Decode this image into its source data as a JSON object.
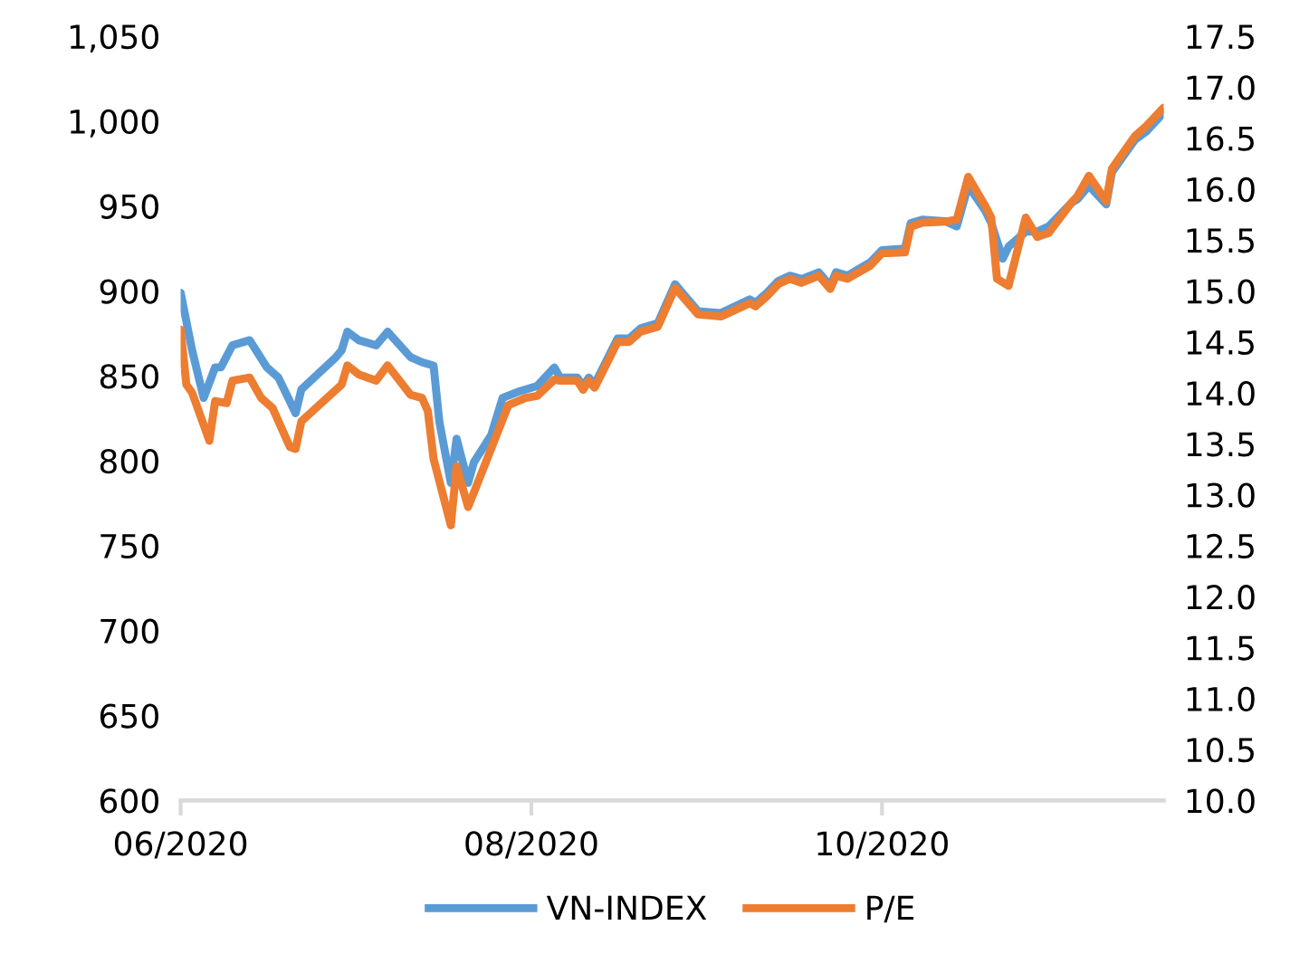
{
  "chart_data": {
    "type": "line",
    "xlim": [
      "2020-06-01",
      "2020-11-19"
    ],
    "xticks": [
      {
        "value": "2020-06-01",
        "label": "06/2020"
      },
      {
        "value": "2020-08-01",
        "label": "08/2020"
      },
      {
        "value": "2020-10-01",
        "label": "10/2020"
      }
    ],
    "ylim": [
      600,
      1050
    ],
    "yticks": [
      {
        "value": 600,
        "label": "600"
      },
      {
        "value": 650,
        "label": "650"
      },
      {
        "value": 700,
        "label": "700"
      },
      {
        "value": 750,
        "label": "750"
      },
      {
        "value": 800,
        "label": "800"
      },
      {
        "value": 850,
        "label": "850"
      },
      {
        "value": 900,
        "label": "900"
      },
      {
        "value": 950,
        "label": "950"
      },
      {
        "value": 1000,
        "label": "1,000"
      },
      {
        "value": 1050,
        "label": "1,050"
      }
    ],
    "y2lim": [
      10.0,
      17.5
    ],
    "y2ticks": [
      {
        "value": 10.0,
        "label": "10.0"
      },
      {
        "value": 10.5,
        "label": "10.5"
      },
      {
        "value": 11.0,
        "label": "11.0"
      },
      {
        "value": 11.5,
        "label": "11.5"
      },
      {
        "value": 12.0,
        "label": "12.0"
      },
      {
        "value": 12.5,
        "label": "12.5"
      },
      {
        "value": 13.0,
        "label": "13.0"
      },
      {
        "value": 13.5,
        "label": "13.5"
      },
      {
        "value": 14.0,
        "label": "14.0"
      },
      {
        "value": 14.5,
        "label": "14.5"
      },
      {
        "value": 15.0,
        "label": "15.0"
      },
      {
        "value": 15.5,
        "label": "15.5"
      },
      {
        "value": 16.0,
        "label": "16.0"
      },
      {
        "value": 16.5,
        "label": "16.5"
      },
      {
        "value": 17.0,
        "label": "17.0"
      },
      {
        "value": 17.5,
        "label": "17.5"
      }
    ],
    "grid": false,
    "legend": "bottom",
    "marker": "none",
    "line_style": "solid",
    "series": [
      {
        "name": "VN-INDEX",
        "color": "#5b9bd5",
        "x": [
          "2020-06-01",
          "2020-06-03",
          "2020-06-05",
          "2020-06-07",
          "2020-06-08",
          "2020-06-10",
          "2020-06-13",
          "2020-06-16",
          "2020-06-18",
          "2020-06-21",
          "2020-06-22",
          "2020-06-28",
          "2020-06-29",
          "2020-06-30",
          "2020-07-02",
          "2020-07-05",
          "2020-07-07",
          "2020-07-11",
          "2020-07-13",
          "2020-07-15",
          "2020-07-16",
          "2020-07-18",
          "2020-07-19",
          "2020-07-21",
          "2020-07-22",
          "2020-07-25",
          "2020-07-27",
          "2020-07-30",
          "2020-08-02",
          "2020-08-05",
          "2020-08-06",
          "2020-08-09",
          "2020-08-10",
          "2020-08-11",
          "2020-08-12",
          "2020-08-16",
          "2020-08-18",
          "2020-08-20",
          "2020-08-23",
          "2020-08-26",
          "2020-08-30",
          "2020-09-03",
          "2020-09-08",
          "2020-09-09",
          "2020-09-11",
          "2020-09-13",
          "2020-09-15",
          "2020-09-17",
          "2020-09-20",
          "2020-09-22",
          "2020-09-23",
          "2020-09-25",
          "2020-09-29",
          "2020-10-01",
          "2020-10-05",
          "2020-10-06",
          "2020-10-08",
          "2020-10-12",
          "2020-10-14",
          "2020-10-16",
          "2020-10-19",
          "2020-10-20",
          "2020-10-22",
          "2020-10-23",
          "2020-10-26",
          "2020-10-28",
          "2020-10-30",
          "2020-11-03",
          "2020-11-04",
          "2020-11-06",
          "2020-11-09",
          "2020-11-10",
          "2020-11-14",
          "2020-11-16",
          "2020-11-19"
        ],
        "values": [
          899,
          865,
          837,
          855,
          855,
          868,
          871,
          855,
          849,
          828,
          842,
          861,
          865,
          876,
          871,
          868,
          876,
          861,
          858,
          856,
          823,
          787,
          813,
          787,
          799,
          815,
          837,
          841,
          844,
          855,
          849,
          849,
          844,
          849,
          845,
          872,
          872,
          878,
          881,
          904,
          888,
          887,
          895,
          893,
          899,
          906,
          909,
          907,
          911,
          903,
          911,
          909,
          917,
          924,
          925,
          940,
          942,
          941,
          938,
          962,
          947,
          940,
          919,
          926,
          935,
          935,
          938,
          952,
          954,
          962,
          951,
          970,
          989,
          994,
          1005
        ]
      },
      {
        "name": "P/E",
        "color": "#ed7d31",
        "axis": "y2",
        "x": [
          "2020-06-01",
          "2020-06-02",
          "2020-06-03",
          "2020-06-06",
          "2020-06-07",
          "2020-06-09",
          "2020-06-10",
          "2020-06-13",
          "2020-06-15",
          "2020-06-17",
          "2020-06-20",
          "2020-06-21",
          "2020-06-22",
          "2020-06-28",
          "2020-06-29",
          "2020-06-30",
          "2020-07-02",
          "2020-07-05",
          "2020-07-07",
          "2020-07-11",
          "2020-07-13",
          "2020-07-14",
          "2020-07-15",
          "2020-07-18",
          "2020-07-19",
          "2020-07-21",
          "2020-07-22",
          "2020-07-25",
          "2020-07-28",
          "2020-07-31",
          "2020-08-02",
          "2020-08-05",
          "2020-08-06",
          "2020-08-09",
          "2020-08-10",
          "2020-08-11",
          "2020-08-12",
          "2020-08-16",
          "2020-08-18",
          "2020-08-20",
          "2020-08-23",
          "2020-08-26",
          "2020-08-30",
          "2020-09-03",
          "2020-09-08",
          "2020-09-09",
          "2020-09-11",
          "2020-09-13",
          "2020-09-15",
          "2020-09-17",
          "2020-09-20",
          "2020-09-22",
          "2020-09-23",
          "2020-09-25",
          "2020-09-29",
          "2020-10-01",
          "2020-10-05",
          "2020-10-06",
          "2020-10-08",
          "2020-10-12",
          "2020-10-14",
          "2020-10-16",
          "2020-10-19",
          "2020-10-20",
          "2020-10-21",
          "2020-10-23",
          "2020-10-26",
          "2020-10-28",
          "2020-10-30",
          "2020-11-03",
          "2020-11-04",
          "2020-11-06",
          "2020-11-09",
          "2020-11-10",
          "2020-11-14",
          "2020-11-16",
          "2020-11-19"
        ],
        "values": [
          14.62,
          14.08,
          14.0,
          13.53,
          13.92,
          13.9,
          14.12,
          14.15,
          13.95,
          13.85,
          13.47,
          13.45,
          13.72,
          14.03,
          14.08,
          14.27,
          14.18,
          14.12,
          14.27,
          13.98,
          13.95,
          13.82,
          13.35,
          12.7,
          13.28,
          12.88,
          13.02,
          13.45,
          13.88,
          13.95,
          13.97,
          14.13,
          14.12,
          14.12,
          14.03,
          14.12,
          14.05,
          14.5,
          14.5,
          14.6,
          14.65,
          15.03,
          14.77,
          14.75,
          14.88,
          14.85,
          14.95,
          15.07,
          15.12,
          15.08,
          15.15,
          15.02,
          15.15,
          15.12,
          15.25,
          15.37,
          15.38,
          15.63,
          15.67,
          15.68,
          15.7,
          16.12,
          15.83,
          15.72,
          15.12,
          15.05,
          15.72,
          15.53,
          15.57,
          15.87,
          15.93,
          16.13,
          15.88,
          16.2,
          16.52,
          16.62,
          16.8
        ]
      }
    ]
  }
}
